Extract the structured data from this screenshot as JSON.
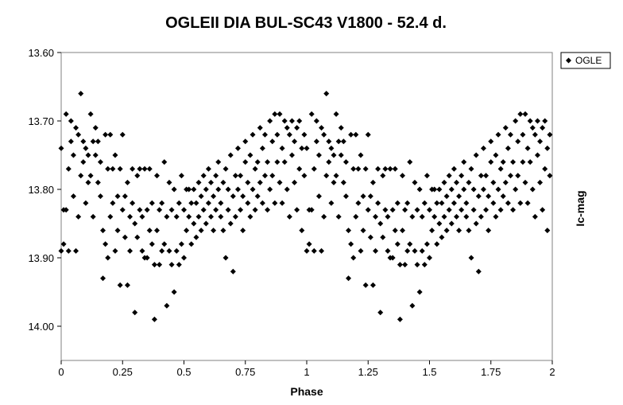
{
  "chart_data": {
    "type": "scatter",
    "title": "OGLEII DIA BUL-SC43 V1800 - 52.4 d.",
    "xlabel": "Phase",
    "ylabel": "Ic-mag",
    "xlim": [
      0,
      2
    ],
    "ylim": [
      13.6,
      14.05
    ],
    "y_inverted": true,
    "x_ticks": [
      "0",
      "0.25",
      "0.5",
      "0.75",
      "1",
      "1.25",
      "1.5",
      "1.75",
      "2"
    ],
    "y_ticks": [
      "13.60",
      "13.70",
      "13.80",
      "13.90",
      "14.00"
    ],
    "grid": false,
    "legend": {
      "position": "top-right",
      "entries": [
        "OGLE"
      ]
    },
    "marker": "diamond",
    "color": "#000000",
    "series": [
      {
        "name": "OGLE",
        "period_repeat": 1,
        "points": [
          [
            0.0,
            13.74
          ],
          [
            0.0,
            13.89
          ],
          [
            0.01,
            13.88
          ],
          [
            0.01,
            13.83
          ],
          [
            0.02,
            13.69
          ],
          [
            0.02,
            13.83
          ],
          [
            0.03,
            13.77
          ],
          [
            0.03,
            13.89
          ],
          [
            0.04,
            13.73
          ],
          [
            0.04,
            13.7
          ],
          [
            0.05,
            13.75
          ],
          [
            0.05,
            13.81
          ],
          [
            0.06,
            13.71
          ],
          [
            0.06,
            13.89
          ],
          [
            0.07,
            13.72
          ],
          [
            0.07,
            13.84
          ],
          [
            0.08,
            13.66
          ],
          [
            0.08,
            13.78
          ],
          [
            0.09,
            13.73
          ],
          [
            0.09,
            13.76
          ],
          [
            0.1,
            13.82
          ],
          [
            0.1,
            13.74
          ],
          [
            0.11,
            13.79
          ],
          [
            0.11,
            13.75
          ],
          [
            0.12,
            13.69
          ],
          [
            0.12,
            13.78
          ],
          [
            0.13,
            13.73
          ],
          [
            0.13,
            13.84
          ],
          [
            0.14,
            13.71
          ],
          [
            0.14,
            13.75
          ],
          [
            0.15,
            13.79
          ],
          [
            0.15,
            13.73
          ],
          [
            0.16,
            13.76
          ],
          [
            0.16,
            13.81
          ],
          [
            0.17,
            13.93
          ],
          [
            0.17,
            13.86
          ],
          [
            0.18,
            13.72
          ],
          [
            0.18,
            13.88
          ],
          [
            0.19,
            13.77
          ],
          [
            0.19,
            13.9
          ],
          [
            0.2,
            13.72
          ],
          [
            0.2,
            13.84
          ],
          [
            0.21,
            13.77
          ],
          [
            0.21,
            13.82
          ],
          [
            0.22,
            13.89
          ],
          [
            0.22,
            13.75
          ],
          [
            0.23,
            13.81
          ],
          [
            0.23,
            13.86
          ],
          [
            0.24,
            13.77
          ],
          [
            0.24,
            13.94
          ],
          [
            0.25,
            13.72
          ],
          [
            0.25,
            13.83
          ],
          [
            0.26,
            13.87
          ],
          [
            0.26,
            13.81
          ],
          [
            0.27,
            13.94
          ],
          [
            0.27,
            13.79
          ],
          [
            0.28,
            13.84
          ],
          [
            0.28,
            13.89
          ],
          [
            0.29,
            13.82
          ],
          [
            0.29,
            13.77
          ],
          [
            0.3,
            13.85
          ],
          [
            0.3,
            13.98
          ],
          [
            0.31,
            13.78
          ],
          [
            0.31,
            13.87
          ],
          [
            0.32,
            13.83
          ],
          [
            0.32,
            13.77
          ],
          [
            0.33,
            13.89
          ],
          [
            0.33,
            13.84
          ],
          [
            0.34,
            13.9
          ],
          [
            0.34,
            13.77
          ],
          [
            0.35,
            13.83
          ],
          [
            0.35,
            13.9
          ],
          [
            0.36,
            13.86
          ],
          [
            0.36,
            13.77
          ],
          [
            0.37,
            13.88
          ],
          [
            0.37,
            13.82
          ],
          [
            0.38,
            13.99
          ],
          [
            0.38,
            13.91
          ],
          [
            0.39,
            13.78
          ],
          [
            0.39,
            13.86
          ],
          [
            0.4,
            13.83
          ],
          [
            0.4,
            13.91
          ],
          [
            0.41,
            13.89
          ],
          [
            0.41,
            13.82
          ],
          [
            0.42,
            13.76
          ],
          [
            0.42,
            13.88
          ],
          [
            0.43,
            13.84
          ],
          [
            0.43,
            13.97
          ],
          [
            0.44,
            13.89
          ],
          [
            0.44,
            13.79
          ],
          [
            0.45,
            13.83
          ],
          [
            0.45,
            13.91
          ],
          [
            0.46,
            13.95
          ],
          [
            0.46,
            13.8
          ],
          [
            0.47,
            13.89
          ],
          [
            0.47,
            13.84
          ],
          [
            0.48,
            13.91
          ],
          [
            0.48,
            13.82
          ],
          [
            0.49,
            13.88
          ],
          [
            0.49,
            13.78
          ],
          [
            0.5,
            13.83
          ],
          [
            0.5,
            13.9
          ],
          [
            0.51,
            13.8
          ],
          [
            0.51,
            13.86
          ],
          [
            0.52,
            13.84
          ],
          [
            0.52,
            13.8
          ],
          [
            0.53,
            13.88
          ],
          [
            0.53,
            13.82
          ],
          [
            0.54,
            13.8
          ],
          [
            0.54,
            13.85
          ],
          [
            0.55,
            13.82
          ],
          [
            0.55,
            13.87
          ],
          [
            0.56,
            13.79
          ],
          [
            0.56,
            13.84
          ],
          [
            0.57,
            13.81
          ],
          [
            0.57,
            13.86
          ],
          [
            0.58,
            13.78
          ],
          [
            0.58,
            13.83
          ],
          [
            0.59,
            13.8
          ],
          [
            0.59,
            13.85
          ],
          [
            0.6,
            13.82
          ],
          [
            0.6,
            13.77
          ],
          [
            0.61,
            13.84
          ],
          [
            0.61,
            13.79
          ],
          [
            0.62,
            13.81
          ],
          [
            0.62,
            13.86
          ],
          [
            0.63,
            13.78
          ],
          [
            0.63,
            13.83
          ],
          [
            0.64,
            13.8
          ],
          [
            0.64,
            13.76
          ],
          [
            0.65,
            13.84
          ],
          [
            0.65,
            13.82
          ],
          [
            0.66,
            13.79
          ],
          [
            0.66,
            13.86
          ],
          [
            0.67,
            13.9
          ],
          [
            0.67,
            13.77
          ],
          [
            0.68,
            13.83
          ],
          [
            0.68,
            13.8
          ],
          [
            0.69,
            13.85
          ],
          [
            0.69,
            13.75
          ],
          [
            0.7,
            13.81
          ],
          [
            0.7,
            13.92
          ],
          [
            0.71,
            13.78
          ],
          [
            0.71,
            13.84
          ],
          [
            0.72,
            13.8
          ],
          [
            0.72,
            13.74
          ],
          [
            0.73,
            13.83
          ],
          [
            0.73,
            13.78
          ],
          [
            0.74,
            13.81
          ],
          [
            0.74,
            13.86
          ],
          [
            0.75,
            13.76
          ],
          [
            0.75,
            13.73
          ],
          [
            0.76,
            13.82
          ],
          [
            0.76,
            13.79
          ],
          [
            0.77,
            13.84
          ],
          [
            0.77,
            13.75
          ],
          [
            0.78,
            13.8
          ],
          [
            0.78,
            13.72
          ],
          [
            0.79,
            13.77
          ],
          [
            0.79,
            13.83
          ],
          [
            0.8,
            13.81
          ],
          [
            0.8,
            13.76
          ],
          [
            0.81,
            13.71
          ],
          [
            0.81,
            13.79
          ],
          [
            0.82,
            13.82
          ],
          [
            0.82,
            13.74
          ],
          [
            0.83,
            13.78
          ],
          [
            0.83,
            13.72
          ],
          [
            0.84,
            13.83
          ],
          [
            0.84,
            13.76
          ],
          [
            0.85,
            13.7
          ],
          [
            0.85,
            13.8
          ],
          [
            0.86,
            13.73
          ],
          [
            0.86,
            13.78
          ],
          [
            0.87,
            13.69
          ],
          [
            0.87,
            13.82
          ],
          [
            0.88,
            13.76
          ],
          [
            0.88,
            13.72
          ],
          [
            0.89,
            13.69
          ],
          [
            0.89,
            13.79
          ],
          [
            0.9,
            13.74
          ],
          [
            0.9,
            13.82
          ],
          [
            0.91,
            13.7
          ],
          [
            0.91,
            13.76
          ],
          [
            0.92,
            13.71
          ],
          [
            0.92,
            13.8
          ],
          [
            0.93,
            13.72
          ],
          [
            0.93,
            13.84
          ],
          [
            0.94,
            13.75
          ],
          [
            0.94,
            13.7
          ],
          [
            0.95,
            13.73
          ],
          [
            0.95,
            13.79
          ],
          [
            0.96,
            13.71
          ],
          [
            0.96,
            13.83
          ],
          [
            0.97,
            13.77
          ],
          [
            0.97,
            13.7
          ],
          [
            0.98,
            13.74
          ],
          [
            0.98,
            13.86
          ],
          [
            0.99,
            13.72
          ],
          [
            0.99,
            13.78
          ]
        ]
      }
    ]
  }
}
